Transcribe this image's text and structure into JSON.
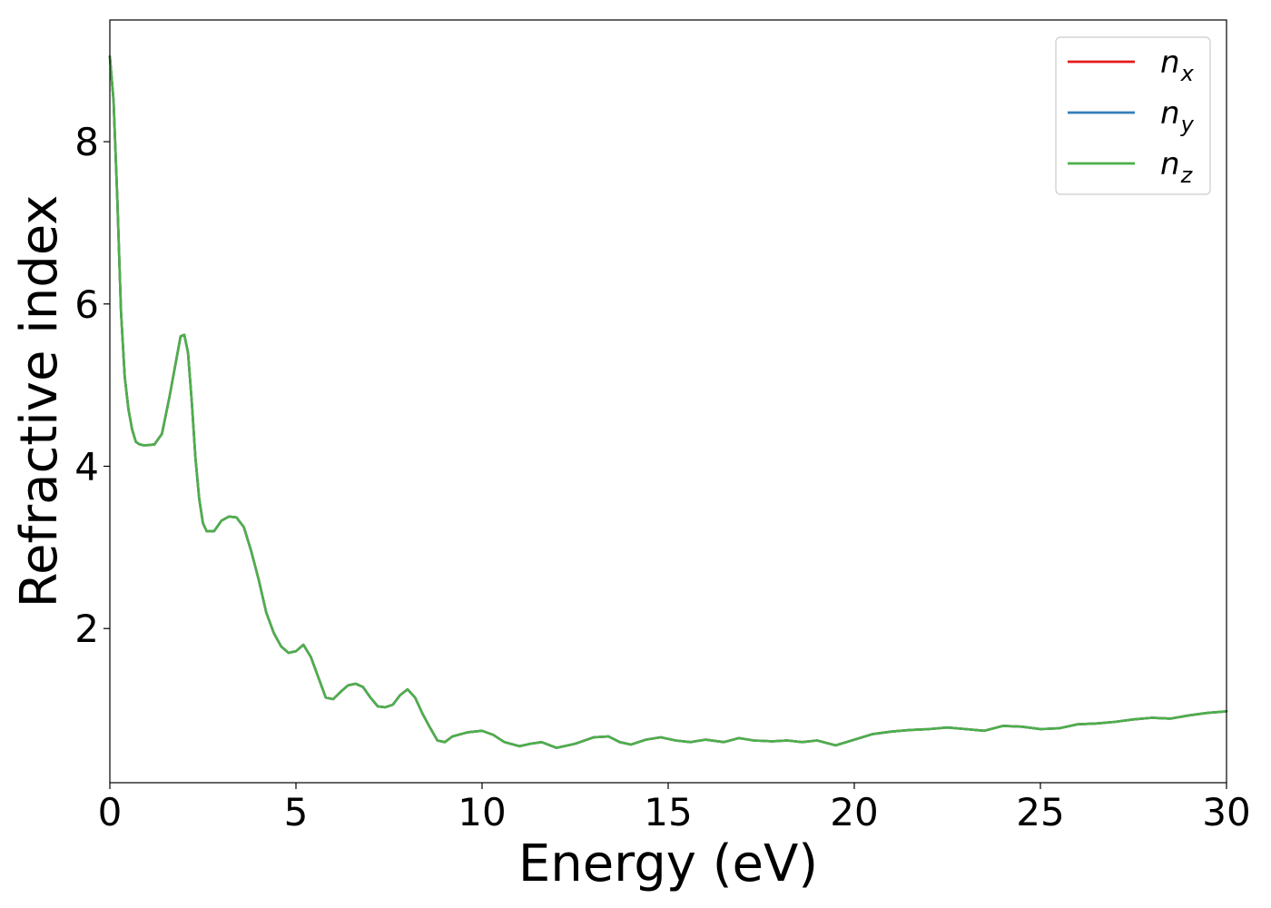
{
  "chart_data": {
    "type": "line",
    "title": "",
    "xlabel": "Energy (eV)",
    "ylabel": "Refractive index",
    "xlim": [
      0,
      30
    ],
    "ylim": [
      0.1,
      9.5
    ],
    "xticks": [
      0,
      5,
      10,
      15,
      20,
      25,
      30
    ],
    "yticks": [
      2,
      4,
      6,
      8
    ],
    "grid": false,
    "legend_position": "top-right",
    "x": [
      0,
      0.1,
      0.2,
      0.3,
      0.4,
      0.5,
      0.6,
      0.7,
      0.8,
      0.9,
      1.0,
      1.2,
      1.4,
      1.6,
      1.8,
      1.9,
      2.0,
      2.1,
      2.2,
      2.3,
      2.4,
      2.5,
      2.6,
      2.8,
      3.0,
      3.2,
      3.4,
      3.6,
      3.8,
      4.0,
      4.2,
      4.4,
      4.6,
      4.8,
      5.0,
      5.2,
      5.4,
      5.6,
      5.8,
      6.0,
      6.2,
      6.4,
      6.6,
      6.8,
      7.0,
      7.2,
      7.4,
      7.6,
      7.8,
      8.0,
      8.2,
      8.4,
      8.6,
      8.8,
      9.0,
      9.2,
      9.6,
      10.0,
      10.3,
      10.6,
      11.0,
      11.3,
      11.6,
      12.0,
      12.5,
      13.0,
      13.4,
      13.7,
      14.0,
      14.4,
      14.8,
      15.2,
      15.6,
      16.0,
      16.5,
      16.9,
      17.3,
      17.8,
      18.2,
      18.6,
      19.0,
      19.5,
      20.0,
      20.5,
      21.0,
      21.5,
      22.0,
      22.5,
      23.0,
      23.5,
      24.0,
      24.5,
      25.0,
      25.5,
      26.0,
      26.5,
      27.0,
      27.5,
      28.0,
      28.5,
      29.0,
      29.5,
      30.0
    ],
    "series": [
      {
        "name": "n_x",
        "label_base": "n",
        "label_sub": "x",
        "color": "#e41a1c",
        "values": [
          9.05,
          8.5,
          7.3,
          5.9,
          5.1,
          4.7,
          4.45,
          4.3,
          4.27,
          4.26,
          4.26,
          4.27,
          4.4,
          4.85,
          5.35,
          5.6,
          5.62,
          5.4,
          4.8,
          4.1,
          3.6,
          3.3,
          3.2,
          3.2,
          3.33,
          3.38,
          3.37,
          3.25,
          2.95,
          2.6,
          2.2,
          1.95,
          1.78,
          1.7,
          1.72,
          1.8,
          1.65,
          1.4,
          1.15,
          1.13,
          1.22,
          1.3,
          1.32,
          1.28,
          1.15,
          1.04,
          1.03,
          1.06,
          1.18,
          1.25,
          1.15,
          0.95,
          0.78,
          0.62,
          0.6,
          0.67,
          0.72,
          0.74,
          0.69,
          0.6,
          0.55,
          0.58,
          0.6,
          0.53,
          0.58,
          0.66,
          0.67,
          0.6,
          0.57,
          0.63,
          0.66,
          0.62,
          0.6,
          0.63,
          0.6,
          0.65,
          0.62,
          0.61,
          0.62,
          0.6,
          0.62,
          0.56,
          0.63,
          0.7,
          0.73,
          0.75,
          0.76,
          0.78,
          0.76,
          0.74,
          0.8,
          0.79,
          0.76,
          0.77,
          0.82,
          0.83,
          0.85,
          0.88,
          0.9,
          0.89,
          0.93,
          0.96,
          0.98
        ]
      },
      {
        "name": "n_y",
        "label_base": "n",
        "label_sub": "y",
        "color": "#377eb8",
        "values": [
          9.05,
          8.5,
          7.3,
          5.9,
          5.1,
          4.7,
          4.45,
          4.3,
          4.27,
          4.26,
          4.26,
          4.27,
          4.4,
          4.85,
          5.35,
          5.6,
          5.62,
          5.4,
          4.8,
          4.1,
          3.6,
          3.3,
          3.2,
          3.2,
          3.33,
          3.38,
          3.37,
          3.25,
          2.95,
          2.6,
          2.2,
          1.95,
          1.78,
          1.7,
          1.72,
          1.8,
          1.65,
          1.4,
          1.15,
          1.13,
          1.22,
          1.3,
          1.32,
          1.28,
          1.15,
          1.04,
          1.03,
          1.06,
          1.18,
          1.25,
          1.15,
          0.95,
          0.78,
          0.62,
          0.6,
          0.67,
          0.72,
          0.74,
          0.69,
          0.6,
          0.55,
          0.58,
          0.6,
          0.53,
          0.58,
          0.66,
          0.67,
          0.6,
          0.57,
          0.63,
          0.66,
          0.62,
          0.6,
          0.63,
          0.6,
          0.65,
          0.62,
          0.61,
          0.62,
          0.6,
          0.62,
          0.56,
          0.63,
          0.7,
          0.73,
          0.75,
          0.76,
          0.78,
          0.76,
          0.74,
          0.8,
          0.79,
          0.76,
          0.77,
          0.82,
          0.83,
          0.85,
          0.88,
          0.9,
          0.89,
          0.93,
          0.96,
          0.98
        ]
      },
      {
        "name": "n_z",
        "label_base": "n",
        "label_sub": "z",
        "color": "#4daf4a",
        "values": [
          9.05,
          8.5,
          7.3,
          5.9,
          5.1,
          4.7,
          4.45,
          4.3,
          4.27,
          4.26,
          4.26,
          4.27,
          4.4,
          4.85,
          5.35,
          5.6,
          5.62,
          5.4,
          4.8,
          4.1,
          3.6,
          3.3,
          3.2,
          3.2,
          3.33,
          3.38,
          3.37,
          3.25,
          2.95,
          2.6,
          2.2,
          1.95,
          1.78,
          1.7,
          1.72,
          1.8,
          1.65,
          1.4,
          1.15,
          1.13,
          1.22,
          1.3,
          1.32,
          1.28,
          1.15,
          1.04,
          1.03,
          1.06,
          1.18,
          1.25,
          1.15,
          0.95,
          0.78,
          0.62,
          0.6,
          0.67,
          0.72,
          0.74,
          0.69,
          0.6,
          0.55,
          0.58,
          0.6,
          0.53,
          0.58,
          0.66,
          0.67,
          0.6,
          0.57,
          0.63,
          0.66,
          0.62,
          0.6,
          0.63,
          0.6,
          0.65,
          0.62,
          0.61,
          0.62,
          0.6,
          0.62,
          0.56,
          0.63,
          0.7,
          0.73,
          0.75,
          0.76,
          0.78,
          0.76,
          0.74,
          0.8,
          0.79,
          0.76,
          0.77,
          0.82,
          0.83,
          0.85,
          0.88,
          0.9,
          0.89,
          0.93,
          0.96,
          0.98
        ]
      }
    ]
  }
}
